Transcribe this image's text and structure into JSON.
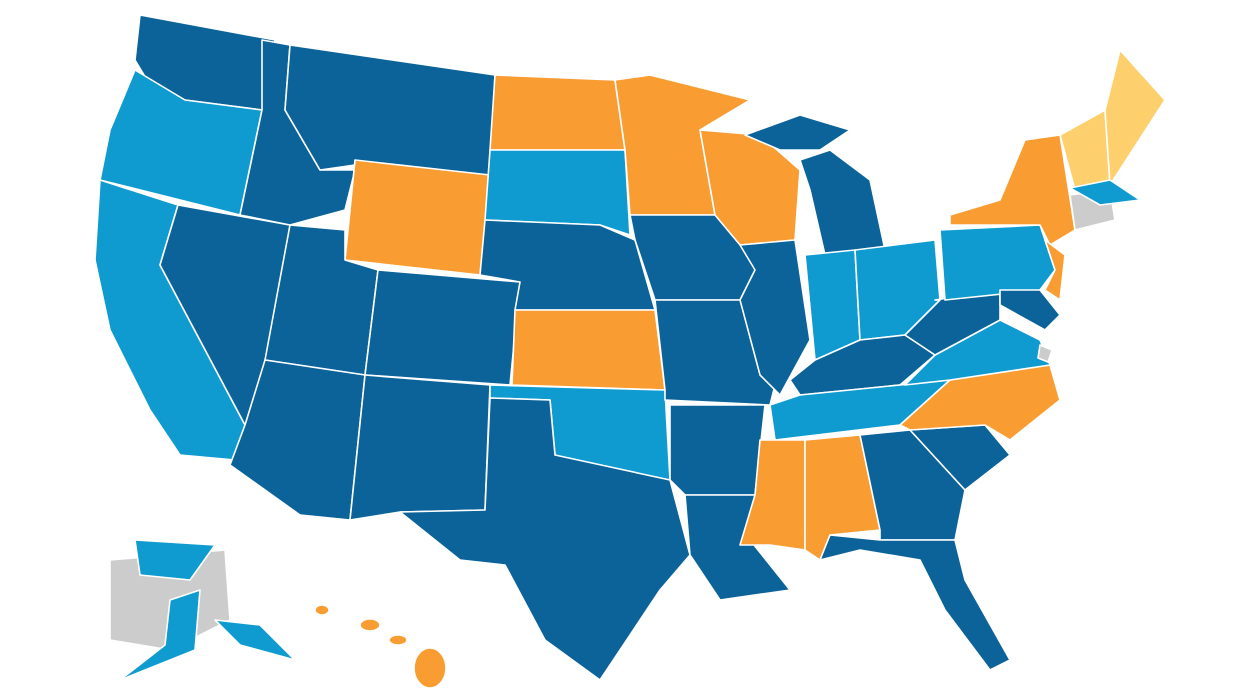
{
  "map": {
    "palette": [
      "#0b6399",
      "#0f9bd0",
      "#f99d33",
      "#fdd06d",
      "#cccccc"
    ]
  }
}
